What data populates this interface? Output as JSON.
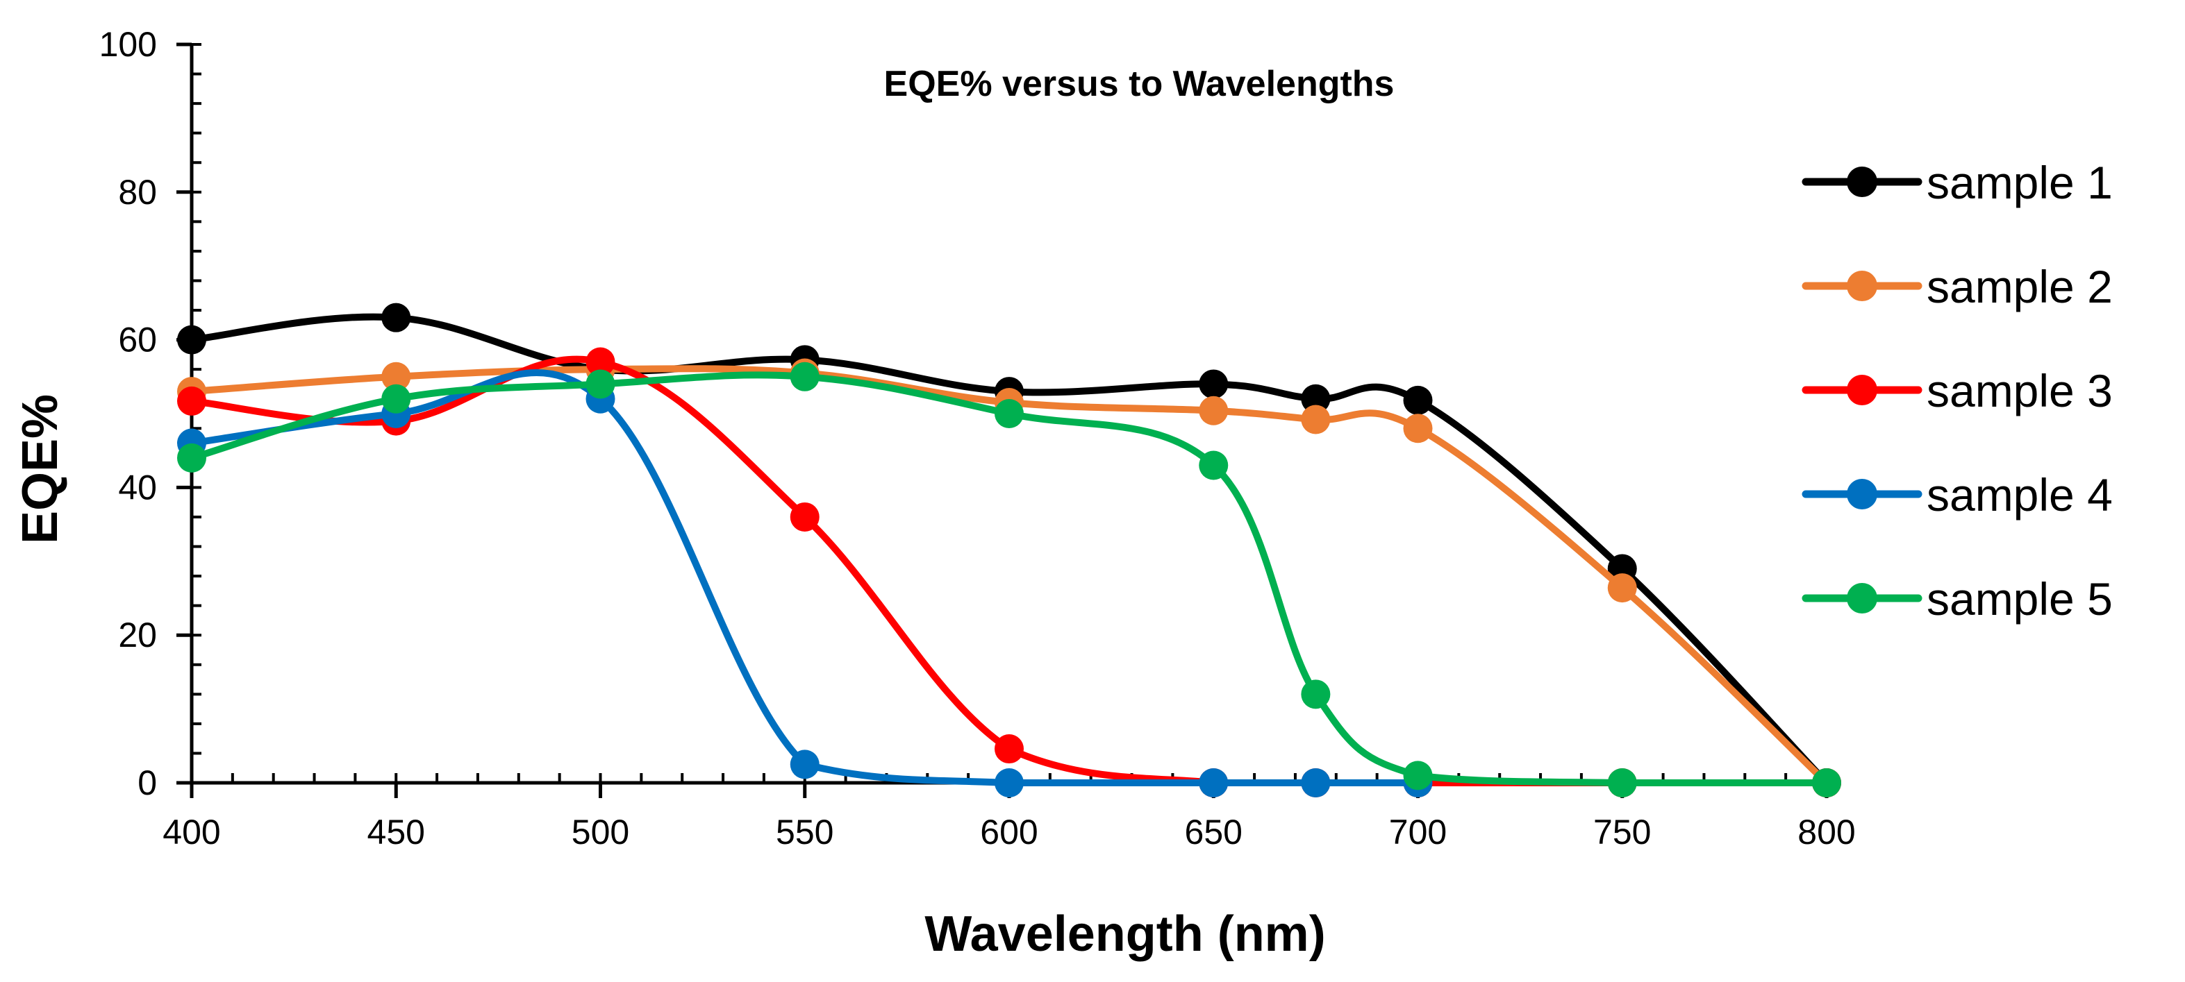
{
  "chart_data": {
    "type": "line",
    "title": "EQE% versus to Wavelengths",
    "xlabel": "Wavelength (nm)",
    "ylabel": "EQE%",
    "xlim": [
      400,
      800
    ],
    "ylim": [
      0,
      100
    ],
    "xticks": [
      400,
      450,
      500,
      550,
      600,
      650,
      700,
      750,
      800
    ],
    "yticks": [
      0,
      20,
      40,
      60,
      80,
      100
    ],
    "x_minor_step": 10,
    "y_minor_step": 4,
    "grid": false,
    "legend_position": "right",
    "series": [
      {
        "name": "sample 1",
        "color": "#000000",
        "x": [
          400,
          450,
          500,
          550,
          600,
          650,
          675,
          700,
          750,
          800
        ],
        "y": [
          60,
          63,
          56,
          57.3,
          53,
          54,
          52,
          51.8,
          29,
          0
        ]
      },
      {
        "name": "sample 2",
        "color": "#ED7D31",
        "x": [
          400,
          450,
          500,
          550,
          600,
          650,
          675,
          700,
          750,
          800
        ],
        "y": [
          53,
          55,
          56,
          55.5,
          51.5,
          50.4,
          49.2,
          48,
          26.4,
          0
        ]
      },
      {
        "name": "sample 3",
        "color": "#FF0000",
        "x": [
          400,
          450,
          500,
          550,
          600,
          650,
          675,
          700,
          750,
          800
        ],
        "y": [
          51.7,
          49,
          57,
          36,
          4.6,
          0,
          0,
          0,
          0,
          0
        ]
      },
      {
        "name": "sample 4",
        "color": "#0070C0",
        "x": [
          400,
          450,
          500,
          550,
          600,
          650,
          675,
          700
        ],
        "y": [
          46,
          50,
          52,
          2.5,
          0,
          0,
          0,
          0
        ]
      },
      {
        "name": "sample 5",
        "color": "#00B050",
        "x": [
          400,
          450,
          500,
          550,
          600,
          650,
          675,
          700,
          750,
          800
        ],
        "y": [
          44,
          52,
          54,
          55,
          50,
          43,
          12,
          1,
          0,
          0
        ]
      }
    ]
  }
}
